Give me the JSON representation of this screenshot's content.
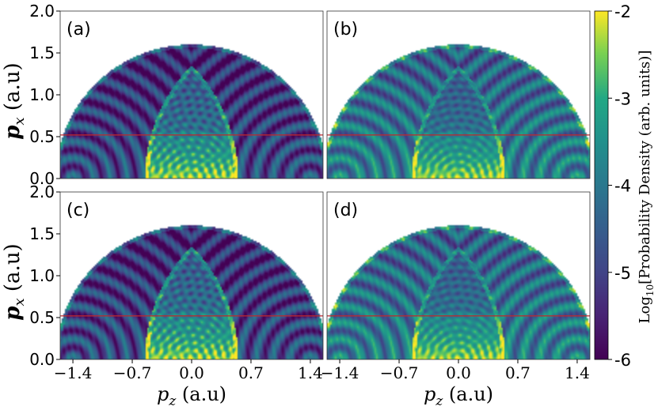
{
  "chart_data": {
    "type": "heatmap",
    "panels": [
      {
        "label": "(a)",
        "cutoff_line_py": 0.52,
        "texture_contrast": 0.55,
        "outer_ring_brightness": 0.18
      },
      {
        "label": "(b)",
        "cutoff_line_py": 0.52,
        "texture_contrast": 0.35,
        "outer_ring_brightness": 0.42
      },
      {
        "label": "(c)",
        "cutoff_line_py": 0.52,
        "texture_contrast": 0.55,
        "outer_ring_brightness": 0.18
      },
      {
        "label": "(d)",
        "cutoff_line_py": 0.52,
        "texture_contrast": 0.35,
        "outer_ring_brightness": 0.42
      }
    ],
    "x_axis": {
      "var": "p",
      "sub": "z",
      "unit": " (a.u)",
      "range": [
        -1.55,
        1.55
      ],
      "ticks": [
        -1.4,
        -0.7,
        0.0,
        0.7,
        1.4
      ],
      "tick_labels": [
        "−1.4",
        "−0.7",
        "0.0",
        "0.7",
        "1.4"
      ]
    },
    "y_axis": {
      "var": "p",
      "sub": "x",
      "unit": " (a.u)",
      "range": [
        0.0,
        2.0
      ],
      "ticks": [
        0.0,
        0.5,
        1.0,
        1.5,
        2.0
      ],
      "tick_labels": [
        "0.0",
        "0.5",
        "1.0",
        "1.5",
        "2.0"
      ]
    },
    "structure": {
      "outer_shell_radius": 1.6,
      "shifted_circle_centers_pz": [
        -1.4,
        1.4
      ],
      "shifted_circle_radius": 1.95,
      "upper_texture_limit_py": 0.55
    },
    "colorbar": {
      "label_prefix": "Log",
      "label_sub": "10",
      "label_suffix": "[Probability Density (arb. units)]",
      "range": [
        -6,
        -2
      ],
      "ticks": [
        -2,
        -3,
        -4,
        -5,
        -6
      ],
      "tick_labels": [
        "-2",
        "-3",
        "-4",
        "-5",
        "-6"
      ],
      "colormap": "viridis"
    },
    "colors": {
      "cutoff_line": "#c0272d",
      "frame": "#333333",
      "background": "#ffffff"
    }
  }
}
